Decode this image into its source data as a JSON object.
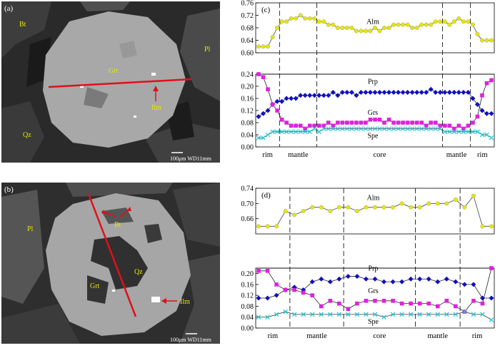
{
  "panels": {
    "a": {
      "panel_label": "(a)",
      "labels": {
        "bt": "Bt",
        "grt": "Grt",
        "pl": "Pl",
        "ilm": "Ilm",
        "qz": "Qz"
      },
      "scale_bar": "100μm  WD11mm"
    },
    "b": {
      "panel_label": "(b)",
      "labels": {
        "bt": "Bt",
        "pl": "Pl",
        "qz": "Qz",
        "grt": "Grt",
        "ilm": "Ilm"
      },
      "scale_bar": "100μm  WD11mm"
    }
  },
  "colors": {
    "alm": "#e6e600",
    "prp": "#1010c0",
    "grs": "#e020e0",
    "spe": "#22c8d8",
    "line": "#e0101a"
  },
  "chart_data": [
    {
      "type": "line",
      "panel_label": "(c)",
      "zones": [
        "rim",
        "mantle",
        "core",
        "mantle",
        "rim"
      ],
      "zone_boundaries": [
        4,
        12,
        39,
        45
      ],
      "top": {
        "ylim": [
          0.6,
          0.76
        ],
        "yticks": [
          "0.60",
          "0.64",
          "0.68",
          "0.72",
          "0.76"
        ],
        "series": [
          {
            "name": "Alm",
            "values": [
              0.62,
              0.62,
              0.62,
              0.65,
              0.68,
              0.7,
              0.7,
              0.71,
              0.71,
              0.72,
              0.71,
              0.71,
              0.71,
              0.7,
              0.7,
              0.69,
              0.69,
              0.68,
              0.68,
              0.68,
              0.68,
              0.67,
              0.67,
              0.67,
              0.67,
              0.68,
              0.67,
              0.68,
              0.68,
              0.69,
              0.69,
              0.69,
              0.69,
              0.68,
              0.68,
              0.69,
              0.69,
              0.69,
              0.7,
              0.7,
              0.7,
              0.69,
              0.7,
              0.71,
              0.7,
              0.7,
              0.69,
              0.66,
              0.64,
              0.64,
              0.64
            ]
          }
        ]
      },
      "bottom": {
        "ylim": [
          0.0,
          0.24
        ],
        "yticks": [
          "0.00",
          "0.04",
          "0.08",
          "0.12",
          "0.16",
          "0.20",
          "0.24"
        ],
        "series": [
          {
            "name": "Prp",
            "values": [
              0.1,
              0.11,
              0.12,
              0.14,
              0.15,
              0.15,
              0.16,
              0.16,
              0.16,
              0.17,
              0.17,
              0.17,
              0.17,
              0.17,
              0.17,
              0.17,
              0.18,
              0.17,
              0.18,
              0.18,
              0.18,
              0.17,
              0.18,
              0.18,
              0.18,
              0.18,
              0.18,
              0.18,
              0.18,
              0.18,
              0.18,
              0.18,
              0.18,
              0.18,
              0.18,
              0.18,
              0.18,
              0.19,
              0.18,
              0.18,
              0.18,
              0.18,
              0.18,
              0.18,
              0.18,
              0.18,
              0.16,
              0.14,
              0.12,
              0.11,
              0.11
            ]
          },
          {
            "name": "Grs",
            "values": [
              0.24,
              0.23,
              0.19,
              0.14,
              0.12,
              0.09,
              0.08,
              0.07,
              0.07,
              0.07,
              0.06,
              0.07,
              0.07,
              0.07,
              0.07,
              0.08,
              0.07,
              0.08,
              0.08,
              0.08,
              0.08,
              0.08,
              0.08,
              0.08,
              0.09,
              0.09,
              0.09,
              0.08,
              0.09,
              0.08,
              0.08,
              0.08,
              0.08,
              0.08,
              0.08,
              0.08,
              0.07,
              0.08,
              0.08,
              0.07,
              0.07,
              0.07,
              0.06,
              0.07,
              0.06,
              0.07,
              0.08,
              0.1,
              0.17,
              0.21,
              0.22
            ]
          },
          {
            "name": "Spe",
            "values": [
              0.03,
              0.03,
              0.04,
              0.05,
              0.05,
              0.05,
              0.05,
              0.05,
              0.05,
              0.05,
              0.05,
              0.05,
              0.06,
              0.05,
              0.06,
              0.06,
              0.06,
              0.06,
              0.06,
              0.06,
              0.06,
              0.06,
              0.06,
              0.06,
              0.06,
              0.06,
              0.06,
              0.06,
              0.06,
              0.06,
              0.06,
              0.06,
              0.06,
              0.06,
              0.06,
              0.06,
              0.06,
              0.06,
              0.06,
              0.06,
              0.05,
              0.05,
              0.05,
              0.05,
              0.05,
              0.05,
              0.05,
              0.05,
              0.04,
              0.04,
              0.03
            ]
          }
        ]
      }
    },
    {
      "type": "line",
      "panel_label": "(d)",
      "zones": [
        "rim",
        "mantle",
        "core",
        "mantle",
        "rim"
      ],
      "zone_boundaries": [
        3,
        9,
        17,
        22
      ],
      "top": {
        "ylim": [
          0.62,
          0.74
        ],
        "yticks": [
          "0.66",
          "0.70",
          "0.74"
        ],
        "series": [
          {
            "name": "Alm",
            "values": [
              0.64,
              0.64,
              0.64,
              0.68,
              0.67,
              0.68,
              0.69,
              0.69,
              0.68,
              0.69,
              0.69,
              0.68,
              0.69,
              0.69,
              0.69,
              0.69,
              0.7,
              0.69,
              0.69,
              0.7,
              0.7,
              0.7,
              0.71,
              0.69,
              0.72,
              0.64,
              0.64
            ]
          }
        ]
      },
      "bottom": {
        "ylim": [
          0.0,
          0.22
        ],
        "yticks": [
          "0.00",
          "0.04",
          "0.08",
          "0.12",
          "0.16",
          "0.20"
        ],
        "series": [
          {
            "name": "Prp",
            "values": [
              0.11,
              0.11,
              0.12,
              0.14,
              0.15,
              0.14,
              0.17,
              0.18,
              0.17,
              0.18,
              0.19,
              0.19,
              0.18,
              0.18,
              0.17,
              0.17,
              0.17,
              0.18,
              0.18,
              0.18,
              0.17,
              0.18,
              0.17,
              0.16,
              0.16,
              0.11,
              0.11
            ]
          },
          {
            "name": "Grs",
            "values": [
              0.21,
              0.21,
              0.16,
              0.14,
              0.14,
              0.13,
              0.12,
              0.08,
              0.1,
              0.09,
              0.07,
              0.09,
              0.1,
              0.1,
              0.1,
              0.1,
              0.09,
              0.09,
              0.09,
              0.09,
              0.08,
              0.1,
              0.08,
              0.06,
              0.1,
              0.09,
              0.22
            ]
          },
          {
            "name": "Spe",
            "values": [
              0.04,
              0.04,
              0.05,
              0.06,
              0.05,
              0.05,
              0.05,
              0.05,
              0.05,
              0.05,
              0.05,
              0.05,
              0.05,
              0.05,
              0.04,
              0.05,
              0.05,
              0.05,
              0.05,
              0.05,
              0.05,
              0.05,
              0.05,
              0.06,
              0.05,
              0.05,
              0.03
            ]
          }
        ]
      }
    }
  ]
}
